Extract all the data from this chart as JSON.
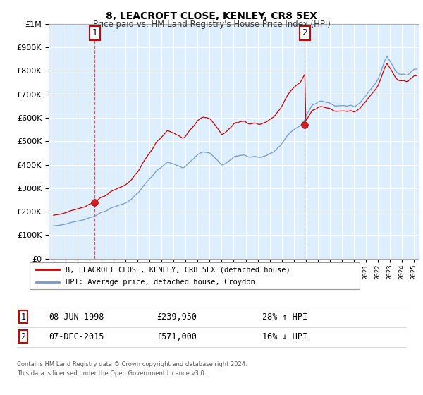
{
  "title": "8, LEACROFT CLOSE, KENLEY, CR8 5EX",
  "subtitle": "Price paid vs. HM Land Registry's House Price Index (HPI)",
  "sale1_date": "08-JUN-1998",
  "sale1_price": 239950,
  "sale1_label": "28% ↑ HPI",
  "sale1_x": 1998.44,
  "sale2_date": "07-DEC-2015",
  "sale2_price": 571000,
  "sale2_label": "16% ↓ HPI",
  "sale2_x": 2015.92,
  "legend_line1": "8, LEACROFT CLOSE, KENLEY, CR8 5EX (detached house)",
  "legend_line2": "HPI: Average price, detached house, Croydon",
  "footer1": "Contains HM Land Registry data © Crown copyright and database right 2024.",
  "footer2": "This data is licensed under the Open Government Licence v3.0.",
  "hpi_color": "#7799cc",
  "price_color": "#cc0000",
  "bg_color": "#ddeeff",
  "grid_color": "#aaaacc",
  "annotation_box_color": "#cc0000",
  "sale1_vline_color": "#dd4444",
  "sale2_vline_color": "#888888",
  "ylim_min": 0,
  "ylim_max": 1000000,
  "xlim_min": 1994.6,
  "xlim_max": 2025.4
}
